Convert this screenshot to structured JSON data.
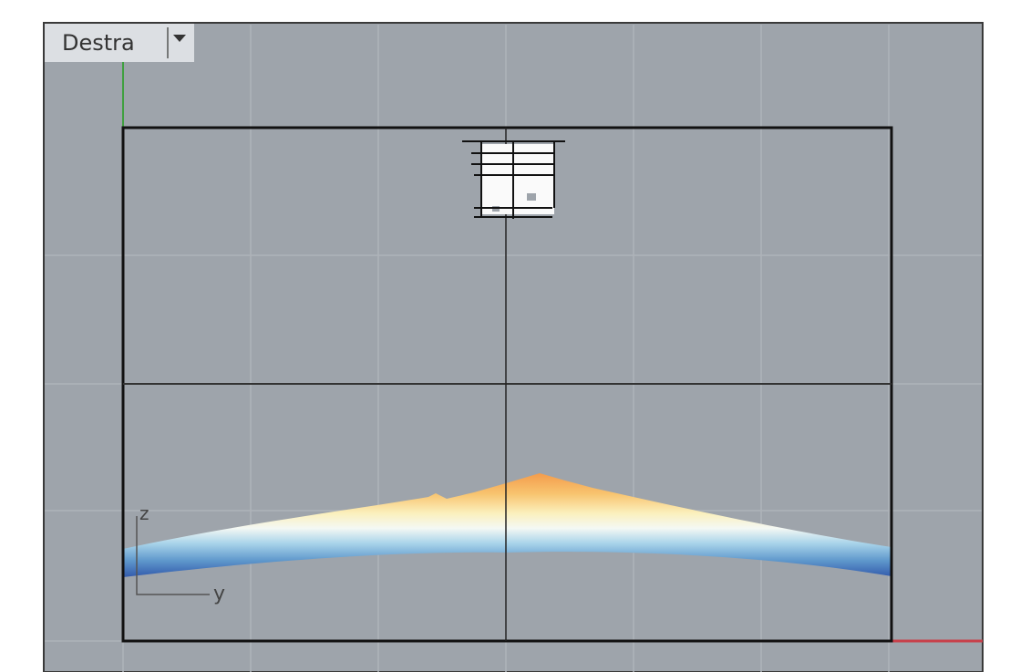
{
  "viewport": {
    "title": "Destra",
    "axis_labels": {
      "vertical": "z",
      "horizontal": "y"
    }
  }
}
